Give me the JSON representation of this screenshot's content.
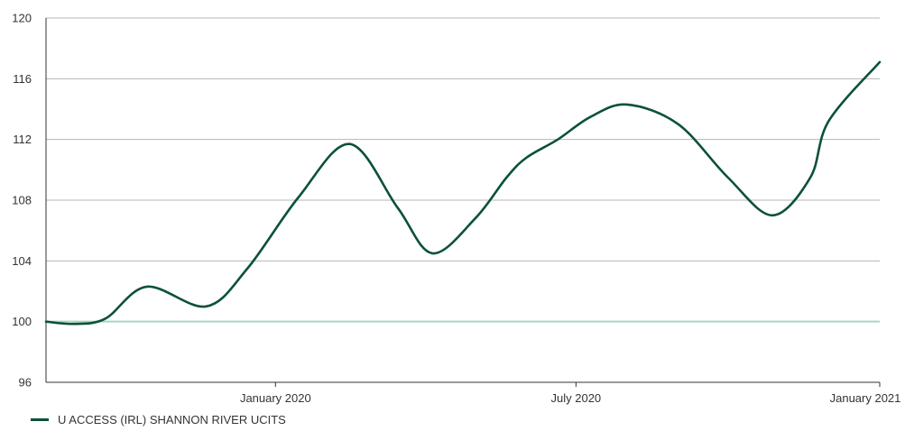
{
  "chart_data": {
    "type": "line",
    "title": "",
    "xlabel": "",
    "ylabel": "",
    "ylim": [
      96,
      120
    ],
    "yticks": [
      96,
      100,
      104,
      108,
      112,
      116,
      120
    ],
    "xlim": [
      "2019-08-15",
      "2021-01-01"
    ],
    "xticks": [
      {
        "label": "January 2020",
        "date": "2020-01-01"
      },
      {
        "label": "July 2020",
        "date": "2020-07-01"
      },
      {
        "label": "January 2021",
        "date": "2021-01-01"
      }
    ],
    "grid": true,
    "baseline": 100,
    "legend_position": "bottom-left",
    "series": [
      {
        "name": "U ACCESS (IRL) SHANNON RIVER UCITS",
        "color": "#0b5236",
        "points": [
          {
            "x": "2019-08-15",
            "y": 100.0
          },
          {
            "x": "2019-09-01",
            "y": 99.85
          },
          {
            "x": "2019-09-20",
            "y": 100.2
          },
          {
            "x": "2019-10-15",
            "y": 102.3
          },
          {
            "x": "2019-11-20",
            "y": 101.0
          },
          {
            "x": "2019-12-15",
            "y": 103.5
          },
          {
            "x": "2020-01-15",
            "y": 108.2
          },
          {
            "x": "2020-02-15",
            "y": 111.7
          },
          {
            "x": "2020-03-15",
            "y": 107.5
          },
          {
            "x": "2020-04-05",
            "y": 104.5
          },
          {
            "x": "2020-05-01",
            "y": 106.8
          },
          {
            "x": "2020-05-20",
            "y": 109.5
          },
          {
            "x": "2020-06-01",
            "y": 110.8
          },
          {
            "x": "2020-06-20",
            "y": 112.0
          },
          {
            "x": "2020-07-10",
            "y": 113.5
          },
          {
            "x": "2020-08-01",
            "y": 114.3
          },
          {
            "x": "2020-09-01",
            "y": 113.0
          },
          {
            "x": "2020-10-01",
            "y": 109.5
          },
          {
            "x": "2020-10-28",
            "y": 107.0
          },
          {
            "x": "2020-11-20",
            "y": 109.5
          },
          {
            "x": "2020-12-01",
            "y": 113.2
          },
          {
            "x": "2021-01-01",
            "y": 117.1
          }
        ]
      }
    ]
  },
  "colors": {
    "line": "#0b5236",
    "baseline": "#a8d5c2",
    "grid": "#b5b5b5",
    "axis": "#333333"
  }
}
